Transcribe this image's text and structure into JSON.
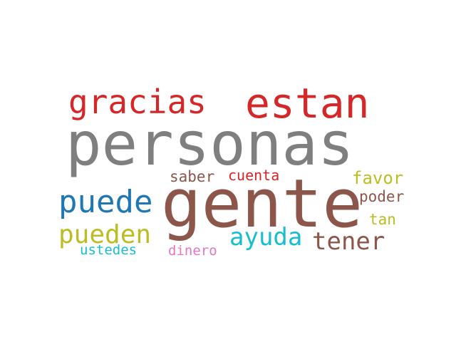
{
  "word_cloud": {
    "words": [
      {
        "text": "personas",
        "color": "#7f7f7f"
      },
      {
        "text": "gente",
        "color": "#8c564b"
      },
      {
        "text": "estan",
        "color": "#d62728"
      },
      {
        "text": "gracias",
        "color": "#d62728"
      },
      {
        "text": "puede",
        "color": "#1f77b4"
      },
      {
        "text": "pueden",
        "color": "#bcbd22"
      },
      {
        "text": "ayuda",
        "color": "#17becf"
      },
      {
        "text": "tener",
        "color": "#8c564b"
      },
      {
        "text": "saber",
        "color": "#8c564b"
      },
      {
        "text": "cuenta",
        "color": "#d62728"
      },
      {
        "text": "favor",
        "color": "#bcbd22"
      },
      {
        "text": "poder",
        "color": "#8c564b"
      },
      {
        "text": "tan",
        "color": "#bcbd22"
      },
      {
        "text": "ustedes",
        "color": "#17becf"
      },
      {
        "text": "dinero",
        "color": "#e377c2"
      }
    ]
  }
}
